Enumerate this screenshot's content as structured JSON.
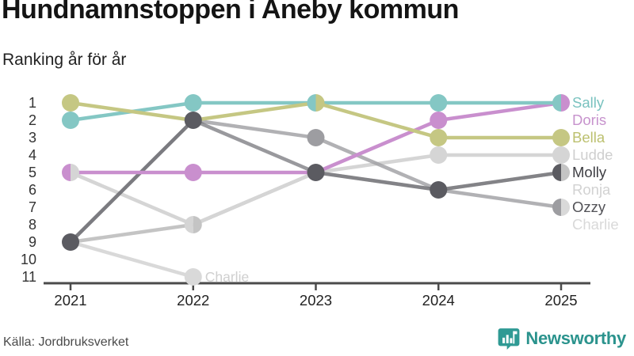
{
  "header": {
    "title": "Hundnamnstoppen i Aneby kommun",
    "subtitle": "Ranking år för år"
  },
  "chart_data": {
    "type": "line",
    "variant": "bump-chart-rankings",
    "x": [
      "2021",
      "2022",
      "2023",
      "2024",
      "2025"
    ],
    "y_ticks": [
      1,
      2,
      3,
      4,
      5,
      6,
      7,
      8,
      9,
      10,
      11
    ],
    "ylim": [
      1,
      11
    ],
    "y_inverted": true,
    "grid": false,
    "legend_position": "right",
    "series": [
      {
        "name": "Sally",
        "color": "#84c7c4",
        "label_color": "#79c2bf",
        "ranks": [
          2,
          1,
          1,
          1,
          1
        ]
      },
      {
        "name": "Doris",
        "color": "#c98fce",
        "label_color": "#c793cd",
        "ranks": [
          5,
          5,
          5,
          2,
          1
        ]
      },
      {
        "name": "Bella",
        "color": "#c5c783",
        "label_color": "#bcc06f",
        "ranks": [
          1,
          2,
          1,
          3,
          3
        ]
      },
      {
        "name": "Ludde",
        "color": "#d5d5d5",
        "label_color": "#cfcfcf",
        "ranks": [
          5,
          8,
          5,
          4,
          4
        ]
      },
      {
        "name": "Molly",
        "color": "#5b5b61",
        "label_color": "#3e3e43",
        "ranks": [
          9,
          2,
          5,
          6,
          5
        ]
      },
      {
        "name": "Ronja",
        "color": "#c4c4c4",
        "label_color": "#d2d2d2",
        "ranks": [
          9,
          8,
          5,
          6,
          5
        ]
      },
      {
        "name": "Ozzy",
        "color": "#9d9da1",
        "label_color": "#525257",
        "ranks": [
          9,
          2,
          3,
          6,
          7
        ]
      },
      {
        "name": "Charlie",
        "color": "#d9d9d9",
        "label_color": "#d9d9d9",
        "ranks": [
          9,
          11,
          null,
          null,
          7
        ]
      }
    ],
    "annotations": [
      {
        "text": "Charlie",
        "year": "2022",
        "rank": 11
      }
    ]
  },
  "footer": {
    "source": "Källa: Jordbruksverket",
    "brand": "Newsworthy",
    "brand_color": "#2b938d",
    "logo_color": "#2f9a94"
  }
}
